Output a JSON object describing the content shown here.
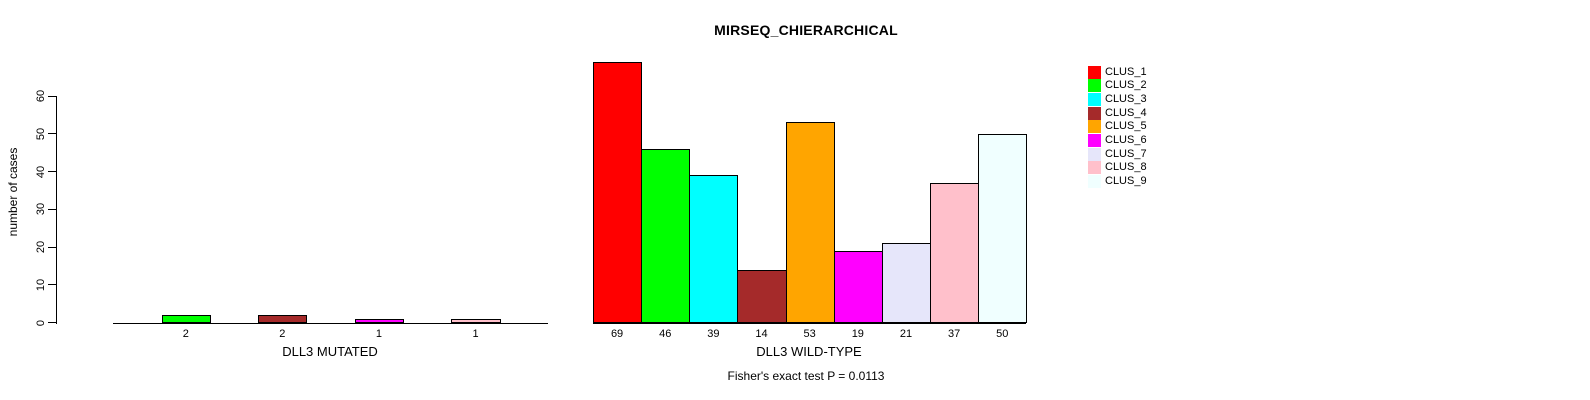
{
  "chart_data": {
    "type": "bar",
    "title": "MIRSEQ_CHIERARCHICAL",
    "ylabel": "number of cases",
    "ylim": [
      0,
      60
    ],
    "yticks": [
      0,
      10,
      20,
      30,
      40,
      50,
      60
    ],
    "grid": false,
    "legend_position": "right",
    "footer": "Fisher's exact test P = 0.0113",
    "clusters": [
      {
        "name": "CLUS_1",
        "color": "#ff0000"
      },
      {
        "name": "CLUS_2",
        "color": "#00ff00"
      },
      {
        "name": "CLUS_3",
        "color": "#00ffff"
      },
      {
        "name": "CLUS_4",
        "color": "#a52a2a"
      },
      {
        "name": "CLUS_5",
        "color": "#ffa500"
      },
      {
        "name": "CLUS_6",
        "color": "#ff00ff"
      },
      {
        "name": "CLUS_7",
        "color": "#e6e6fa"
      },
      {
        "name": "CLUS_8",
        "color": "#ffc0cb"
      },
      {
        "name": "CLUS_9",
        "color": "#f0ffff"
      }
    ],
    "groups": [
      {
        "xlabel": "DLL3 MUTATED",
        "bars": [
          {
            "cluster": "CLUS_1",
            "value": 0,
            "label": ""
          },
          {
            "cluster": "CLUS_2",
            "value": 2,
            "label": "2"
          },
          {
            "cluster": "CLUS_3",
            "value": 0,
            "label": ""
          },
          {
            "cluster": "CLUS_4",
            "value": 2,
            "label": "2"
          },
          {
            "cluster": "CLUS_5",
            "value": 0,
            "label": ""
          },
          {
            "cluster": "CLUS_6",
            "value": 1,
            "label": "1"
          },
          {
            "cluster": "CLUS_7",
            "value": 0,
            "label": ""
          },
          {
            "cluster": "CLUS_8",
            "value": 1,
            "label": "1"
          },
          {
            "cluster": "CLUS_9",
            "value": 0,
            "label": ""
          }
        ]
      },
      {
        "xlabel": "DLL3 WILD-TYPE",
        "bars": [
          {
            "cluster": "CLUS_1",
            "value": 69,
            "label": "69"
          },
          {
            "cluster": "CLUS_2",
            "value": 46,
            "label": "46"
          },
          {
            "cluster": "CLUS_3",
            "value": 39,
            "label": "39"
          },
          {
            "cluster": "CLUS_4",
            "value": 14,
            "label": "14"
          },
          {
            "cluster": "CLUS_5",
            "value": 53,
            "label": "53"
          },
          {
            "cluster": "CLUS_6",
            "value": 19,
            "label": "19"
          },
          {
            "cluster": "CLUS_7",
            "value": 21,
            "label": "21"
          },
          {
            "cluster": "CLUS_8",
            "value": 37,
            "label": "37"
          },
          {
            "cluster": "CLUS_9",
            "value": 50,
            "label": "50"
          }
        ]
      }
    ]
  }
}
